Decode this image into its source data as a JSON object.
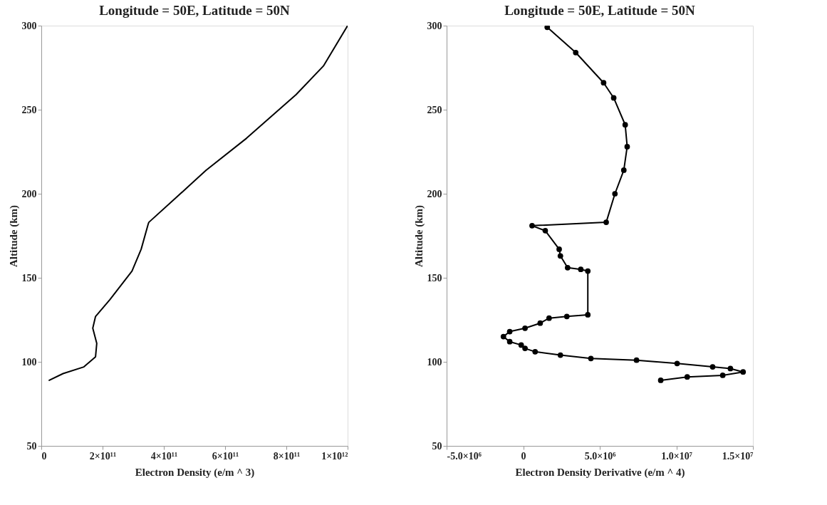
{
  "chart_data": [
    {
      "type": "line",
      "title": "Longitude = 50E, Latitude = 50N",
      "xlabel": "Electron Density (e/m ^ 3)",
      "ylabel": "Altitude (km)",
      "xlim": [
        0,
        1000000000000.0
      ],
      "ylim": [
        50,
        300
      ],
      "xticks": [
        0,
        {
          "value": 200000000000.0,
          "label": "2×10¹¹"
        },
        {
          "value": 400000000000.0,
          "label": "4×10¹¹"
        },
        {
          "value": 600000000000.0,
          "label": "6×10¹¹"
        },
        {
          "value": 800000000000.0,
          "label": "8×10¹¹"
        },
        {
          "value": 1000000000000.0,
          "label": "1×10¹²"
        }
      ],
      "yticks": [
        50,
        100,
        150,
        200,
        250,
        300
      ],
      "grid": false,
      "legend": false,
      "marker": "none",
      "line_style": "solid",
      "series": [
        {
          "color": "#000000",
          "x": [
            1000000000000.0,
            921000000000.0,
            832000000000.0,
            670000000000.0,
            538000000000.0,
            436000000000.0,
            351000000000.0,
            349000000000.0,
            326000000000.0,
            296000000000.0,
            224000000000.0,
            177000000000.0,
            168000000000.0,
            181000000000.0,
            177000000000.0,
            139000000000.0,
            71000000000.0,
            26000000000.0
          ],
          "values": [
            300,
            276,
            259,
            233,
            214,
            197,
            183,
            182,
            167,
            154,
            137,
            127,
            120,
            111,
            103,
            97,
            93,
            89
          ]
        }
      ]
    },
    {
      "type": "line",
      "title": "Longitude = 50E, Latitude = 50N",
      "xlabel": "Electron Density Derivative (e/m ^ 4)",
      "ylabel": "Altitude (km)",
      "xlim": [
        -5000000.0,
        15000000.0
      ],
      "ylim": [
        50,
        300
      ],
      "xticks": [
        {
          "value": -5000000.0,
          "label": "-5.0×10⁶"
        },
        0,
        {
          "value": 5000000.0,
          "label": "5.0×10⁶"
        },
        {
          "value": 10000000.0,
          "label": "1.0×10⁷"
        },
        {
          "value": 15000000.0,
          "label": "1.5×10⁷"
        }
      ],
      "yticks": [
        50,
        100,
        150,
        200,
        250,
        300
      ],
      "grid": false,
      "legend": false,
      "marker": "circle",
      "line_style": "solid",
      "series": [
        {
          "color": "#000000",
          "x": [
            1570000.0,
            3430000.0,
            5250000.0,
            5910000.0,
            6660000.0,
            6790000.0,
            6570000.0,
            5990000.0,
            5420000.0,
            580000.0,
            1440000.0,
            2350000.0,
            2430000.0,
            2900000.0,
            3760000.0,
            4220000.0,
            4220000.0,
            2850000.0,
            1690000.0,
            1110000.0,
            120000.0,
            -880000.0,
            -1290000.0,
            -880000.0,
            -130000.0,
            120000.0,
            780000.0,
            2430000.0,
            4420000.0,
            7400000.0,
            10050000.0,
            12370000.0,
            13530000.0,
            14360000.0,
            13030000.0,
            10710000.0,
            8980000.0
          ],
          "values": [
            299,
            284,
            266,
            257,
            241,
            228,
            214,
            200,
            183,
            181,
            178,
            167,
            163,
            156,
            155,
            154,
            128,
            127,
            126,
            123,
            120,
            118,
            115,
            112,
            110,
            108,
            106,
            104,
            102,
            101,
            99,
            97,
            96,
            94,
            92,
            91,
            89
          ]
        }
      ]
    }
  ]
}
